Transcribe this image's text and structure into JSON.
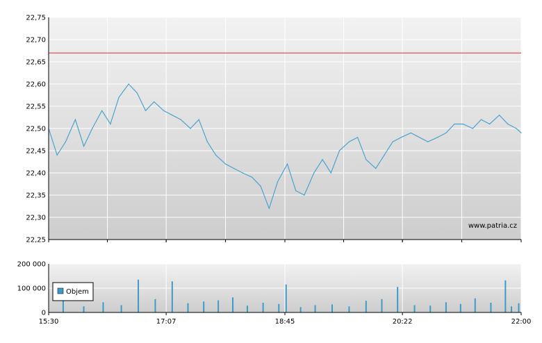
{
  "watermark": "www.patria.cz",
  "colors": {
    "price_line": "#4aa3cf",
    "volume_bar": "#3d9cc7",
    "reference_line": "#d9342b",
    "plot_top": "#f2f2f2",
    "plot_bottom": "#cdcdcd",
    "grid": "#ffffff",
    "axis": "#000000"
  },
  "chart_data": [
    {
      "type": "line",
      "panel": "price",
      "title": "",
      "xlabel": "",
      "ylabel": "",
      "x_ticks": [
        "15:30",
        "17:07",
        "18:45",
        "20:22",
        "22:00"
      ],
      "x_range": [
        "15:30",
        "22:00"
      ],
      "y_ticks": [
        "22,25",
        "22,30",
        "22,35",
        "22,40",
        "22,45",
        "22,50",
        "22,55",
        "22,60",
        "22,65",
        "22,70",
        "22,75"
      ],
      "ylim": [
        22.25,
        22.75
      ],
      "reference_line": 22.67,
      "grid": true,
      "legend": "none",
      "x": [
        "15:30",
        "15:37",
        "15:44",
        "15:52",
        "15:59",
        "16:06",
        "16:14",
        "16:21",
        "16:28",
        "16:36",
        "16:43",
        "16:50",
        "16:57",
        "17:05",
        "17:12",
        "17:19",
        "17:27",
        "17:34",
        "17:41",
        "17:48",
        "17:56",
        "18:03",
        "18:10",
        "18:18",
        "18:25",
        "18:32",
        "18:39",
        "18:47",
        "18:54",
        "19:01",
        "19:09",
        "19:16",
        "19:23",
        "19:30",
        "19:38",
        "19:45",
        "19:52",
        "20:00",
        "20:07",
        "20:14",
        "20:21",
        "20:29",
        "20:36",
        "20:43",
        "20:51",
        "20:58",
        "21:05",
        "21:12",
        "21:20",
        "21:27",
        "21:34",
        "21:42",
        "21:49",
        "21:56",
        "22:00"
      ],
      "values": [
        22.5,
        22.44,
        22.47,
        22.52,
        22.46,
        22.5,
        22.54,
        22.51,
        22.57,
        22.6,
        22.58,
        22.54,
        22.56,
        22.54,
        22.53,
        22.52,
        22.5,
        22.52,
        22.47,
        22.44,
        22.42,
        22.41,
        22.4,
        22.39,
        22.37,
        22.32,
        22.38,
        22.42,
        22.36,
        22.35,
        22.4,
        22.43,
        22.4,
        22.45,
        22.47,
        22.48,
        22.43,
        22.41,
        22.44,
        22.47,
        22.48,
        22.49,
        22.48,
        22.47,
        22.48,
        22.49,
        22.51,
        22.51,
        22.5,
        22.52,
        22.51,
        22.53,
        22.51,
        22.5,
        22.49
      ],
      "label_fmt": "decimal_comma"
    },
    {
      "type": "bar",
      "panel": "volume",
      "title": "",
      "ylabel": "",
      "legend": "Objem",
      "legend_position": "left",
      "y_ticks": [
        "0",
        "100 000",
        "200 000"
      ],
      "ylim": [
        0,
        200000
      ],
      "x_ticks": [
        "15:30",
        "17:07",
        "18:45",
        "20:22",
        "22:00"
      ],
      "x": [
        "15:42",
        "15:59",
        "16:15",
        "16:30",
        "16:44",
        "16:58",
        "17:12",
        "17:25",
        "17:38",
        "17:50",
        "18:02",
        "18:14",
        "18:27",
        "18:40",
        "18:46",
        "18:58",
        "19:10",
        "19:24",
        "19:38",
        "19:52",
        "20:05",
        "20:18",
        "20:32",
        "20:45",
        "20:58",
        "21:10",
        "21:22",
        "21:35",
        "21:47",
        "21:52",
        "21:58"
      ],
      "values": [
        60000,
        25000,
        42000,
        30000,
        135000,
        55000,
        128000,
        38000,
        45000,
        50000,
        62000,
        28000,
        40000,
        35000,
        115000,
        22000,
        30000,
        33000,
        25000,
        48000,
        55000,
        105000,
        30000,
        28000,
        42000,
        35000,
        58000,
        40000,
        132000,
        25000,
        38000
      ]
    }
  ]
}
